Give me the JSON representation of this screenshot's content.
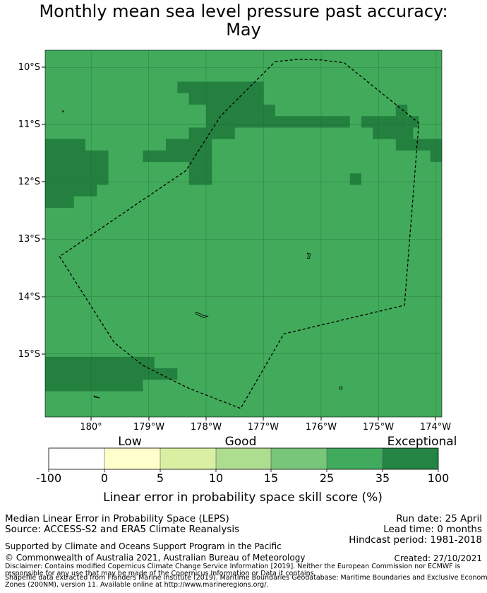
{
  "title": {
    "line1": "Monthly mean sea level pressure past accuracy:",
    "line2": "May"
  },
  "map": {
    "lat_labels": [
      "10°S",
      "11°S",
      "12°S",
      "13°S",
      "14°S",
      "15°S"
    ],
    "lon_labels": [
      "180°",
      "179°W",
      "178°W",
      "177°W",
      "176°W",
      "175°W",
      "174°W"
    ],
    "colors": {
      "background": "#41aa5b",
      "exceptional": "#24803f",
      "boundary": "#000000"
    },
    "cell_size_deg": 0.2,
    "extent": {
      "lon_min": -180.8,
      "lon_max": -173.9,
      "lat_max": -9.7,
      "lat_min": -16.1
    },
    "exceptional_cells_deg": [
      {
        "lon0": -178.5,
        "lon1": -177.0,
        "lat0": -10.25,
        "lat1": -10.45
      },
      {
        "lon0": -178.3,
        "lon1": -177.0,
        "lat0": -10.45,
        "lat1": -10.65
      },
      {
        "lon0": -178.0,
        "lon1": -176.8,
        "lat0": -10.65,
        "lat1": -10.85
      },
      {
        "lon0": -178.0,
        "lon1": -175.5,
        "lat0": -10.85,
        "lat1": -11.05
      },
      {
        "lon0": -178.3,
        "lon1": -177.5,
        "lat0": -11.05,
        "lat1": -11.25
      },
      {
        "lon0": -178.7,
        "lon1": -177.9,
        "lat0": -11.25,
        "lat1": -11.45
      },
      {
        "lon0": -179.1,
        "lon1": -177.9,
        "lat0": -11.45,
        "lat1": -11.65
      },
      {
        "lon0": -178.3,
        "lon1": -177.9,
        "lat0": -11.65,
        "lat1": -12.05
      },
      {
        "lon0": -175.3,
        "lon1": -174.5,
        "lat0": -10.85,
        "lat1": -11.05
      },
      {
        "lon0": -174.7,
        "lon1": -174.5,
        "lat0": -10.65,
        "lat1": -10.85
      },
      {
        "lon0": -174.5,
        "lon1": -174.3,
        "lat0": -10.85,
        "lat1": -11.05
      },
      {
        "lon0": -175.1,
        "lon1": -174.4,
        "lat0": -11.05,
        "lat1": -11.25
      },
      {
        "lon0": -174.7,
        "lon1": -173.9,
        "lat0": -11.25,
        "lat1": -11.45
      },
      {
        "lon0": -174.1,
        "lon1": -173.9,
        "lat0": -11.45,
        "lat1": -11.65
      },
      {
        "lon0": -175.5,
        "lon1": -175.3,
        "lat0": -11.85,
        "lat1": -12.05
      },
      {
        "lon0": -180.8,
        "lon1": -180.1,
        "lat0": -11.25,
        "lat1": -11.45
      },
      {
        "lon0": -180.8,
        "lon1": -179.7,
        "lat0": -11.45,
        "lat1": -12.05
      },
      {
        "lon0": -180.8,
        "lon1": -179.9,
        "lat0": -12.05,
        "lat1": -12.25
      },
      {
        "lon0": -180.8,
        "lon1": -180.3,
        "lat0": -12.25,
        "lat1": -12.45
      },
      {
        "lon0": -180.8,
        "lon1": -178.9,
        "lat0": -15.05,
        "lat1": -15.25
      },
      {
        "lon0": -180.8,
        "lon1": -178.5,
        "lat0": -15.25,
        "lat1": -15.45
      },
      {
        "lon0": -180.8,
        "lon1": -179.1,
        "lat0": -15.45,
        "lat1": -15.65
      }
    ],
    "eez_boundary_deg": [
      [
        -176.8,
        -9.9
      ],
      [
        -176.4,
        -9.86
      ],
      [
        -176.0,
        -9.87
      ],
      [
        -175.6,
        -9.92
      ],
      [
        -174.3,
        -10.97
      ],
      [
        -174.55,
        -14.15
      ],
      [
        -176.65,
        -14.65
      ],
      [
        -177.4,
        -15.95
      ],
      [
        -178.3,
        -15.6
      ],
      [
        -179.1,
        -15.2
      ],
      [
        -179.6,
        -14.8
      ],
      [
        -180.55,
        -13.3
      ],
      [
        -178.35,
        -11.8
      ],
      [
        -177.75,
        -10.85
      ],
      [
        -176.8,
        -9.9
      ]
    ],
    "islands_deg": [
      {
        "name": "island-east",
        "points": [
          [
            -176.24,
            -13.24
          ],
          [
            -176.19,
            -13.25
          ],
          [
            -176.2,
            -13.33
          ],
          [
            -176.24,
            -13.33
          ],
          [
            -176.22,
            -13.28
          ]
        ]
      },
      {
        "name": "island-center",
        "points": [
          [
            -178.18,
            -14.27
          ],
          [
            -178.1,
            -14.3
          ],
          [
            -178.05,
            -14.33
          ],
          [
            -177.97,
            -14.34
          ],
          [
            -178.03,
            -14.37
          ],
          [
            -178.12,
            -14.33
          ],
          [
            -178.18,
            -14.3
          ]
        ]
      },
      {
        "name": "island-south",
        "points": [
          [
            -175.67,
            -15.57
          ],
          [
            -175.63,
            -15.58
          ],
          [
            -175.64,
            -15.62
          ],
          [
            -175.68,
            -15.61
          ]
        ]
      },
      {
        "name": "island-southwest",
        "points": [
          [
            -179.95,
            -15.73
          ],
          [
            -179.85,
            -15.77
          ],
          [
            -179.95,
            -15.75
          ]
        ]
      },
      {
        "name": "islet-northwest",
        "points": [
          [
            -180.5,
            -10.76
          ],
          [
            -180.48,
            -10.76
          ],
          [
            -180.49,
            -10.78
          ]
        ]
      }
    ]
  },
  "colorbar": {
    "categories": [
      "Low",
      "Good",
      "Exceptional"
    ],
    "ticks": [
      "-100",
      "0",
      "5",
      "10",
      "15",
      "25",
      "35",
      "100"
    ],
    "colors": [
      "#ffffff",
      "#ffffcc",
      "#d9f0a3",
      "#addd8e",
      "#78c679",
      "#41ab5d",
      "#238443"
    ],
    "label": "Linear error in probability space skill score (%)"
  },
  "footer": {
    "method": "Median Linear Error in Probability Space (LEPS)",
    "source": "Source: ACCESS-S2 and ERA5 Climate Reanalysis",
    "run_date": "Run date: 25 April",
    "lead_time": "Lead time: 0 months",
    "hindcast": "Hindcast period: 1981-2018",
    "supported": "Supported by Climate and Oceans Support Program in the Pacific",
    "copyright": "© Commonwealth of Australia 2021, Australian Bureau of Meteorology",
    "created": "Created: 27/10/2021",
    "disclaimer1": "Disclaimer: Contains modified Copernicus Climate Change Service Information [2019]. Neither the European Commission nor ECMWF is",
    "disclaimer2": "responsible for any use that may be made of the Copernicus Information or Data it contains.",
    "disclaimer3": "Shapefile data extracted from Flanders Marine Institute (2019). Maritime Boundaries Geodatabase: Maritime Boundaries and Exclusive Economic",
    "disclaimer4": "Zones (200NM), version 11. Available online at http://www.marineregions.org/."
  }
}
